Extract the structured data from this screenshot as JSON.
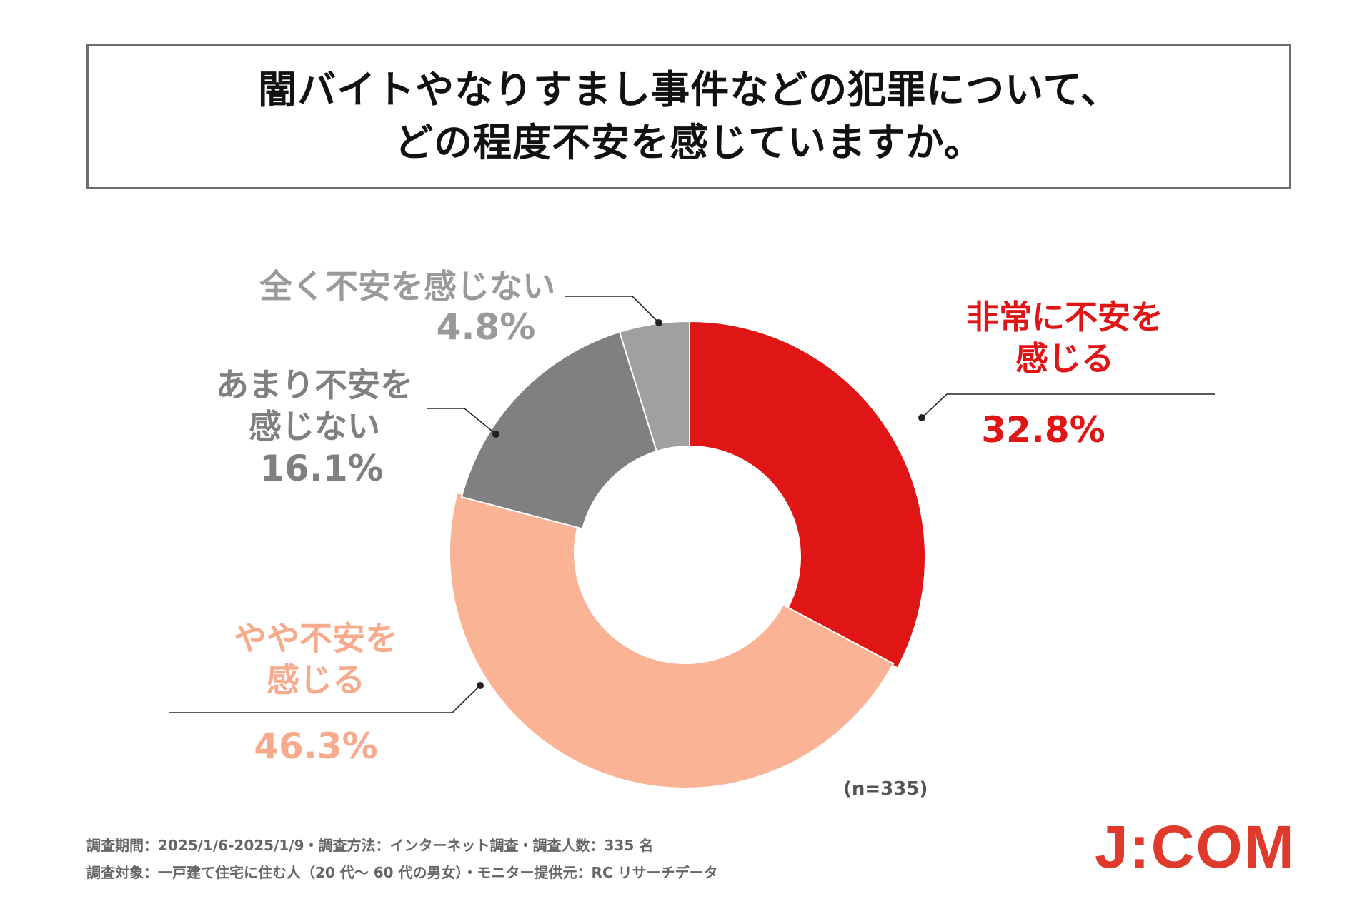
{
  "title": {
    "line1": "闇バイトやなりすまし事件などの犯罪について、",
    "line2": "どの程度不安を感じていますか。"
  },
  "chart_data": {
    "type": "pie",
    "donut": true,
    "title": "闇バイトやなりすまし事件などの犯罪について、どの程度不安を感じていますか。",
    "categories": [
      "非常に不安を感じる",
      "やや不安を感じる",
      "あまり不安を感じない",
      "全く不安を感じない"
    ],
    "values": [
      32.8,
      46.3,
      16.1,
      4.8
    ],
    "colors": [
      "#e01515",
      "#fbb395",
      "#808080",
      "#a0a0a0"
    ],
    "label_colors": [
      "#e01515",
      "#f7ab8d",
      "#808080",
      "#9a9a9a"
    ],
    "labels": [
      {
        "line1": "非常に不安を",
        "line2": "感じる",
        "pct": "32.8%"
      },
      {
        "line1": "やや不安を",
        "line2": "感じる",
        "pct": "46.3%"
      },
      {
        "line1": "あまり不安を",
        "line2": "感じない",
        "pct": "16.1%"
      },
      {
        "line1": "全く不安を感じない",
        "line2": "",
        "pct": "4.8%"
      }
    ],
    "start": "12 o'clock",
    "direction": "clockwise",
    "n_label": "(n=335)"
  },
  "notes": {
    "line1": "調査期間：2025/1/6-2025/1/9・調査方法：インターネット調査・調査人数：335 名",
    "line2": "調査対象：一戸建て住宅に住む人（20 代～ 60 代の男女）・モニター提供元：RC リサーチデータ"
  },
  "logo": "J:COM"
}
